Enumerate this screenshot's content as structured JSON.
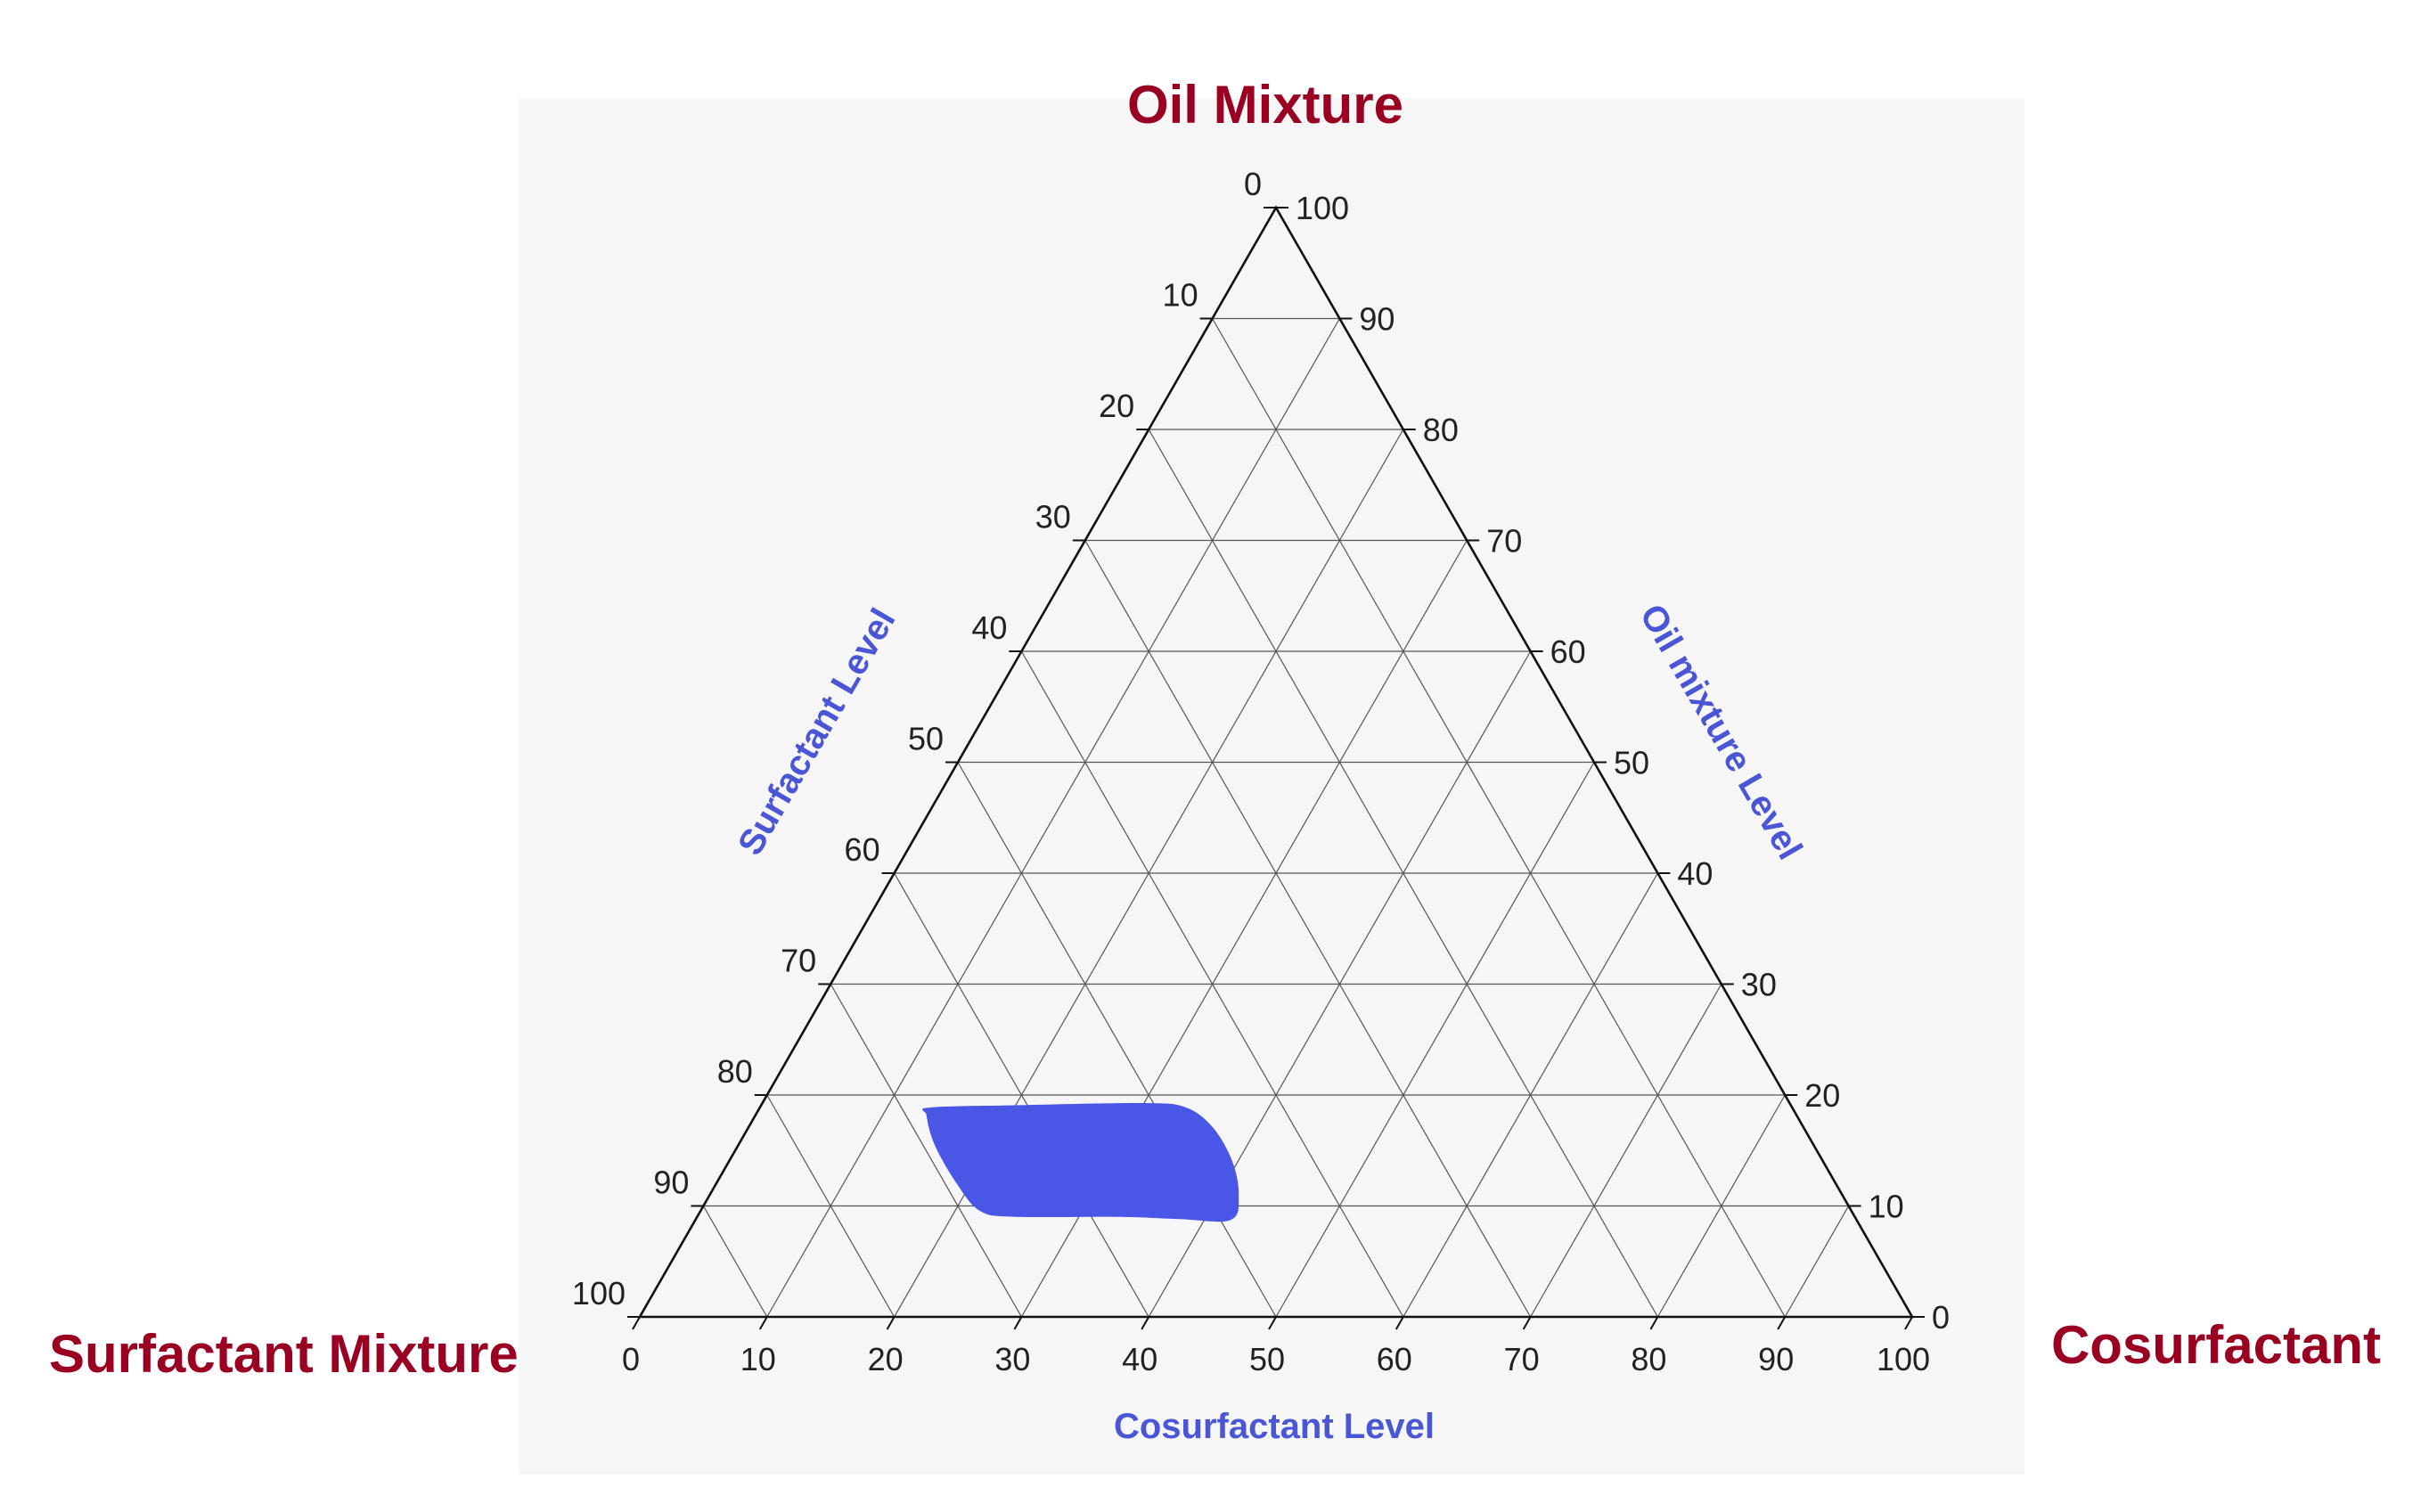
{
  "chart_data": {
    "type": "ternary",
    "vertices": {
      "top": "Oil Mixture",
      "left": "Surfactant Mixture",
      "right": "Cosurfactant"
    },
    "axes": {
      "left": {
        "label": "Surfactant Level",
        "ticks": [
          "0",
          "10",
          "20",
          "30",
          "40",
          "50",
          "60",
          "70",
          "80",
          "90",
          "100"
        ]
      },
      "right": {
        "label": "Oil mixture Level",
        "ticks": [
          "100",
          "90",
          "80",
          "70",
          "60",
          "50",
          "40",
          "30",
          "20",
          "10",
          "0"
        ]
      },
      "bottom": {
        "label": "Cosurfactant Level",
        "ticks": [
          "0",
          "10",
          "20",
          "30",
          "40",
          "50",
          "60",
          "70",
          "80",
          "90",
          "100"
        ]
      }
    },
    "range": [
      0,
      100
    ],
    "grid_step": 10,
    "grid": true,
    "region": {
      "description_fill": "#4a56e6",
      "points": [
        {
          "cosurfactant": 13.5,
          "oil": 18.8
        },
        {
          "cosurfactant": 20,
          "oil": 19.0
        },
        {
          "cosurfactant": 30,
          "oil": 19.2
        },
        {
          "cosurfactant": 33.5,
          "oil": 18.8
        },
        {
          "cosurfactant": 36.5,
          "oil": 17
        },
        {
          "cosurfactant": 39.5,
          "oil": 14
        },
        {
          "cosurfactant": 41.5,
          "oil": 11
        },
        {
          "cosurfactant": 42,
          "oil": 8.8
        },
        {
          "cosurfactant": 38,
          "oil": 8.9
        },
        {
          "cosurfactant": 33,
          "oil": 9.1
        },
        {
          "cosurfactant": 25,
          "oil": 9.1
        },
        {
          "cosurfactant": 22,
          "oil": 9.6
        },
        {
          "cosurfactant": 19,
          "oil": 12
        },
        {
          "cosurfactant": 15.5,
          "oil": 15.5
        },
        {
          "cosurfactant": 13.5,
          "oil": 18.2
        }
      ]
    },
    "colors": {
      "vertex_label": "#990022",
      "axis_label": "#4a56d6",
      "region": "#4a56e6",
      "background": "#f6f6f6",
      "grid": "#555555",
      "edge": "#111111"
    }
  }
}
